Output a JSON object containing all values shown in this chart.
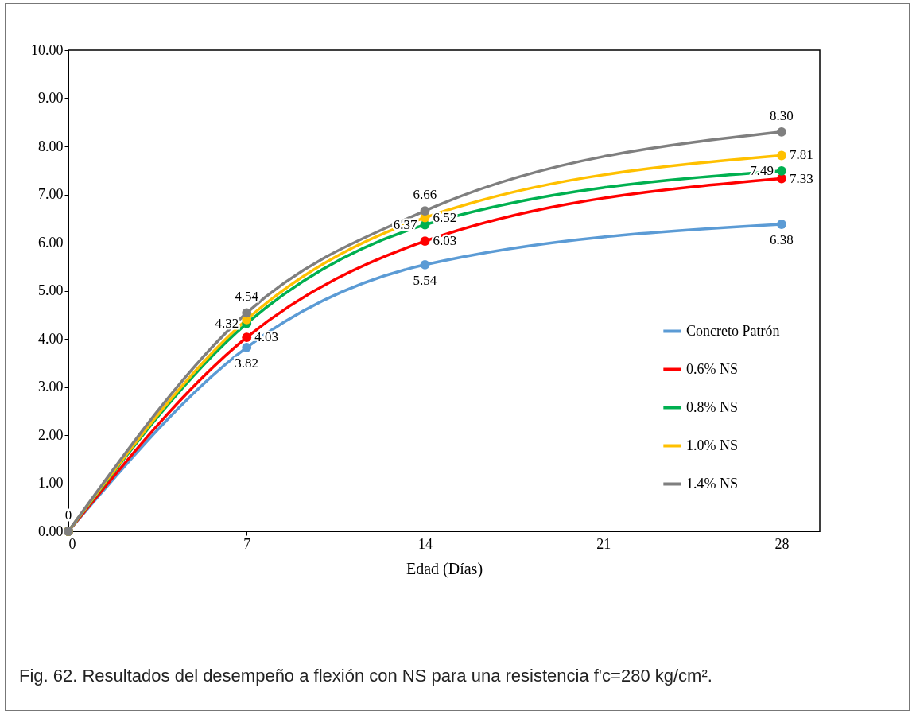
{
  "chart_data": {
    "type": "line",
    "xlabel": "Edad (Días)",
    "x": [
      0,
      7,
      14,
      28
    ],
    "xlim": [
      0,
      29.5
    ],
    "xticks": [
      0,
      7,
      14,
      21,
      28
    ],
    "ylim": [
      0,
      10
    ],
    "yticks": [
      {
        "value": 0,
        "label": "0.00"
      },
      {
        "value": 1,
        "label": "1.00"
      },
      {
        "value": 2,
        "label": "2.00"
      },
      {
        "value": 3,
        "label": "3.00"
      },
      {
        "value": 4,
        "label": "4.00"
      },
      {
        "value": 5,
        "label": "5.00"
      },
      {
        "value": 6,
        "label": "6.00"
      },
      {
        "value": 7,
        "label": "7.00"
      },
      {
        "value": 8,
        "label": "8.00"
      },
      {
        "value": 9,
        "label": "9.00"
      },
      {
        "value": 10,
        "label": "10.00"
      }
    ],
    "grid": false,
    "legend": "bottom right",
    "marker": "circle",
    "line_style": "solid",
    "series": [
      {
        "name": "Concreto Patrón",
        "color": "#5b9bd5",
        "values": [
          0,
          3.82,
          5.54,
          6.38
        ],
        "value_labels": [
          null,
          "3.82",
          "5.54",
          "6.38"
        ]
      },
      {
        "name": "0.6% NS",
        "color": "#ff0000",
        "values": [
          0,
          4.03,
          6.03,
          7.33
        ],
        "value_labels": [
          null,
          "4.03",
          "6.03",
          "7.33"
        ]
      },
      {
        "name": "0.8% NS",
        "color": "#00b050",
        "values": [
          0,
          4.32,
          6.37,
          7.49
        ],
        "value_labels": [
          null,
          "4.32",
          "6.37",
          "7.49"
        ]
      },
      {
        "name": "1.0% NS",
        "color": "#ffc000",
        "values": [
          0,
          4.4,
          6.52,
          7.81
        ],
        "value_labels": [
          null,
          null,
          "6.52",
          "7.81"
        ]
      },
      {
        "name": "1.4% NS",
        "color": "#7f7f7f",
        "values": [
          0,
          4.54,
          6.66,
          8.3
        ],
        "value_labels": [
          "0",
          "4.54",
          "6.66",
          "8.30"
        ]
      }
    ],
    "annotations": [
      "Fig. 62. Resultados del desempeño a flexión con NS para una resistencia f'c=280 kg/cm²."
    ]
  }
}
